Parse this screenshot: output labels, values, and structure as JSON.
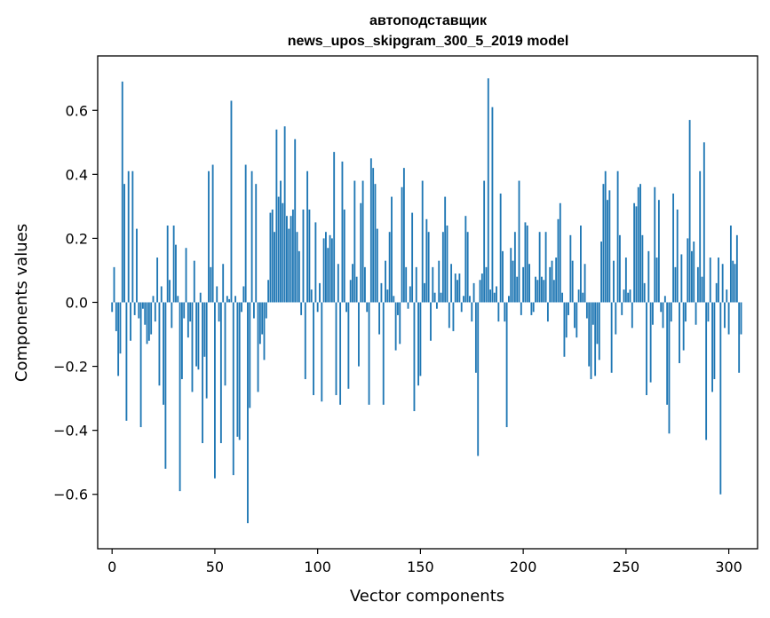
{
  "chart_data": {
    "type": "bar",
    "title_line1": "автоподставщик",
    "title_line2": "news_upos_skipgram_300_5_2019 model",
    "xlabel": "Vector components",
    "ylabel": "Components values",
    "xlim": [
      -7,
      314
    ],
    "ylim": [
      -0.77,
      0.77
    ],
    "xticks": [
      0,
      50,
      100,
      150,
      200,
      250,
      300
    ],
    "xtick_labels": [
      "0",
      "50",
      "100",
      "150",
      "200",
      "250",
      "300"
    ],
    "yticks": [
      -0.6,
      -0.4,
      -0.2,
      0.0,
      0.2,
      0.4,
      0.6
    ],
    "ytick_labels": [
      "−0.6",
      "−0.4",
      "−0.2",
      "0.0",
      "0.2",
      "0.4",
      "0.6"
    ],
    "bar_color": "#1f77b4",
    "values": [
      -0.03,
      0.11,
      -0.09,
      -0.23,
      -0.16,
      0.69,
      0.37,
      -0.37,
      0.41,
      -0.12,
      0.41,
      -0.04,
      0.23,
      -0.05,
      -0.39,
      -0.02,
      -0.07,
      -0.13,
      -0.12,
      -0.1,
      0.02,
      -0.06,
      0.14,
      -0.26,
      0.05,
      -0.32,
      -0.52,
      0.24,
      0.07,
      -0.08,
      0.24,
      0.18,
      0.02,
      -0.59,
      -0.24,
      -0.05,
      0.17,
      -0.11,
      -0.06,
      -0.28,
      0.13,
      -0.2,
      -0.21,
      0.03,
      -0.44,
      -0.17,
      -0.3,
      0.41,
      0.11,
      0.43,
      -0.55,
      0.05,
      -0.06,
      -0.44,
      0.12,
      -0.26,
      0.02,
      0.01,
      0.63,
      -0.54,
      0.02,
      -0.42,
      -0.43,
      -0.03,
      0.05,
      0.43,
      -0.69,
      -0.33,
      0.41,
      -0.05,
      0.37,
      -0.28,
      -0.13,
      -0.1,
      -0.18,
      -0.05,
      0.07,
      0.28,
      0.29,
      0.22,
      0.54,
      0.33,
      0.38,
      0.31,
      0.55,
      0.27,
      0.23,
      0.27,
      0.29,
      0.51,
      0.22,
      0.16,
      -0.04,
      0.29,
      -0.24,
      0.41,
      0.29,
      0.04,
      -0.29,
      0.25,
      -0.03,
      0.06,
      -0.31,
      0.2,
      0.22,
      0.17,
      0.21,
      0.2,
      0.47,
      -0.29,
      0.12,
      -0.32,
      0.44,
      0.29,
      -0.03,
      -0.27,
      0.07,
      0.12,
      0.38,
      0.08,
      -0.2,
      0.31,
      0.38,
      0.11,
      -0.03,
      -0.32,
      0.45,
      0.42,
      0.37,
      0.23,
      -0.1,
      0.06,
      -0.32,
      0.13,
      0.04,
      0.22,
      0.33,
      0.02,
      -0.15,
      -0.04,
      -0.13,
      0.36,
      0.42,
      0.11,
      -0.02,
      0.05,
      0.28,
      -0.34,
      0.11,
      -0.26,
      -0.23,
      0.38,
      0.06,
      0.26,
      0.22,
      -0.12,
      0.11,
      0.03,
      -0.02,
      0.13,
      0.03,
      0.22,
      0.33,
      0.24,
      -0.08,
      0.12,
      -0.09,
      0.09,
      0.07,
      0.09,
      -0.03,
      0.02,
      0.27,
      0.22,
      0.02,
      -0.06,
      0.06,
      -0.22,
      -0.48,
      0.07,
      0.09,
      0.38,
      0.11,
      0.7,
      0.04,
      0.61,
      0.03,
      0.05,
      -0.06,
      0.34,
      0.16,
      -0.06,
      -0.39,
      0.02,
      0.17,
      0.13,
      0.22,
      0.08,
      0.38,
      -0.04,
      0.11,
      0.25,
      0.24,
      0.12,
      -0.04,
      -0.03,
      0.08,
      0.07,
      0.22,
      0.08,
      0.07,
      0.22,
      -0.06,
      0.11,
      0.13,
      0.07,
      0.14,
      0.26,
      0.31,
      0.03,
      -0.17,
      -0.11,
      -0.04,
      0.21,
      0.13,
      -0.08,
      -0.11,
      0.04,
      0.24,
      0.03,
      0.12,
      -0.05,
      -0.2,
      -0.24,
      -0.07,
      -0.23,
      -0.13,
      -0.18,
      0.19,
      0.37,
      0.41,
      0.32,
      0.35,
      -0.22,
      0.13,
      -0.1,
      0.41,
      0.21,
      -0.04,
      0.04,
      0.14,
      0.03,
      0.04,
      -0.08,
      0.31,
      0.3,
      0.36,
      0.37,
      0.21,
      0.06,
      -0.29,
      0.16,
      -0.25,
      -0.07,
      0.36,
      0.14,
      0.32,
      -0.03,
      -0.08,
      0.02,
      -0.32,
      -0.41,
      -0.06,
      0.34,
      0.11,
      0.29,
      -0.19,
      0.15,
      -0.15,
      -0.06,
      0.2,
      0.57,
      0.16,
      0.19,
      -0.07,
      0.11,
      0.41,
      0.08,
      0.5,
      -0.43,
      -0.06,
      0.14,
      -0.28,
      -0.24,
      0.06,
      0.14,
      -0.6,
      0.12,
      -0.08,
      0.04,
      -0.1,
      0.24,
      0.13,
      0.12,
      0.21,
      -0.22,
      -0.1
    ]
  }
}
